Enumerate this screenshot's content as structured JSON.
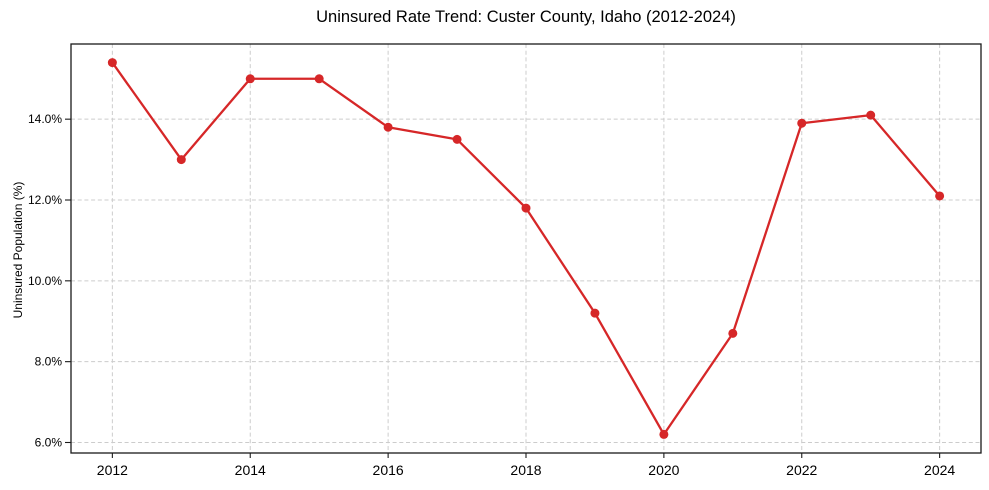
{
  "chart_data": {
    "type": "line",
    "title": "Uninsured Rate Trend: Custer County, Idaho (2012-2024)",
    "xlabel": "",
    "ylabel": "Uninsured Population (%)",
    "x": [
      2012,
      2013,
      2014,
      2015,
      2016,
      2017,
      2018,
      2019,
      2020,
      2021,
      2022,
      2023,
      2024
    ],
    "values": [
      15.4,
      13.0,
      15.0,
      15.0,
      13.8,
      13.5,
      11.8,
      9.2,
      6.2,
      8.7,
      13.9,
      14.1,
      12.1
    ],
    "xlim": [
      2011.4,
      2024.6
    ],
    "ylim": [
      5.74,
      15.86
    ],
    "x_ticks": [
      {
        "value": 2012,
        "label": "2012"
      },
      {
        "value": 2014,
        "label": "2014"
      },
      {
        "value": 2016,
        "label": "2016"
      },
      {
        "value": 2018,
        "label": "2018"
      },
      {
        "value": 2020,
        "label": "2020"
      },
      {
        "value": 2022,
        "label": "2022"
      },
      {
        "value": 2024,
        "label": "2024"
      }
    ],
    "y_ticks": [
      {
        "value": 6.0,
        "label": "6.0%"
      },
      {
        "value": 8.0,
        "label": "8.0%"
      },
      {
        "value": 10.0,
        "label": "10.0%"
      },
      {
        "value": 12.0,
        "label": "12.0%"
      },
      {
        "value": 14.0,
        "label": "14.0%"
      }
    ],
    "grid": true,
    "legend_position": "none",
    "marker": "circle"
  },
  "colors": {
    "line": "#d62728",
    "marker": "#d62728",
    "grid": "#cccccc",
    "spine": "#1a1a1a",
    "tick": "#1a1a1a",
    "text": "#000000",
    "background": "#ffffff"
  }
}
